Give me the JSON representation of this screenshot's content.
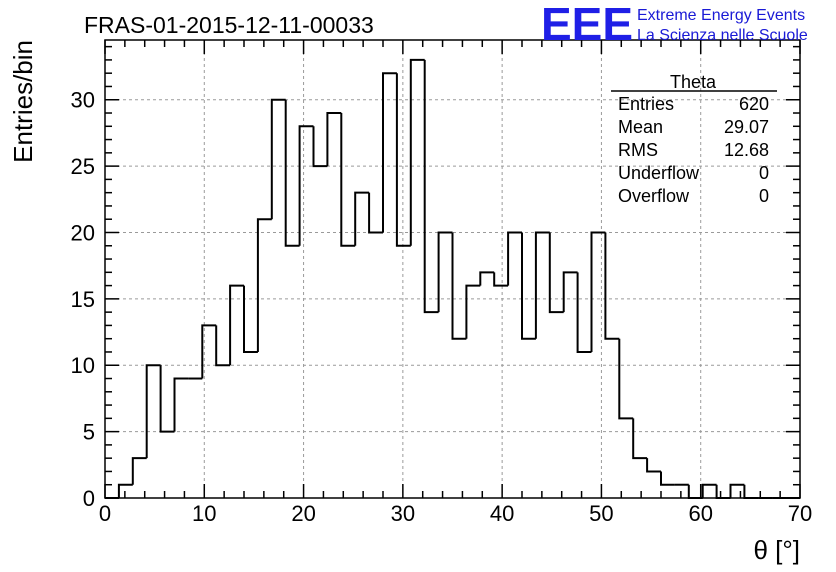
{
  "chart_data": {
    "type": "bar",
    "title": "FRAS-01-2015-12-11-00033",
    "xlabel": "θ [°]",
    "ylabel": "Entries/bin",
    "xlim": [
      0,
      70
    ],
    "ylim": [
      0,
      34.5
    ],
    "x_ticks": [
      0,
      10,
      20,
      30,
      40,
      50,
      60,
      70
    ],
    "y_ticks": [
      0,
      5,
      10,
      15,
      20,
      25,
      30
    ],
    "grid": true,
    "bin_width": 1.4,
    "bin_start": 0,
    "values": [
      0,
      1,
      3,
      10,
      5,
      9,
      9,
      13,
      10,
      16,
      11,
      21,
      30,
      19,
      28,
      25,
      29,
      19,
      23,
      20,
      32,
      19,
      33,
      14,
      20,
      12,
      16,
      17,
      16,
      20,
      12,
      20,
      14,
      17,
      11,
      20,
      12,
      6,
      3,
      2,
      1,
      1,
      0,
      1,
      0,
      1,
      0,
      0,
      0,
      0
    ],
    "stats_box": {
      "name": "Theta",
      "rows": [
        {
          "label": "Entries",
          "value": "620"
        },
        {
          "label": "Mean",
          "value": "29.07"
        },
        {
          "label": "RMS",
          "value": "12.68"
        },
        {
          "label": "Underflow",
          "value": "0"
        },
        {
          "label": "Overflow",
          "value": "0"
        }
      ]
    }
  },
  "logo": {
    "mark": "EEE",
    "line1": "Extreme Energy Events",
    "line2": "La Scienza nelle Scuole",
    "color": "#1f1fe6"
  }
}
